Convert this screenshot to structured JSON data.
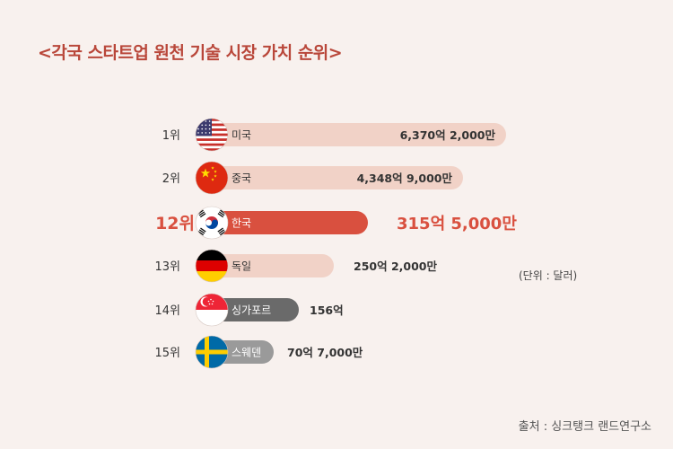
{
  "title": "<각국 스타트업 원천 기술 시장 가치 순위>",
  "unit_note": "(단위 : 달러)",
  "source": "출처 : 싱크탱크 랜드연구소",
  "colors": {
    "title": "#b9473a",
    "highlight": "#d9503f",
    "bar_light": "#f1d2c7",
    "bar_gray": "#6a6a6a",
    "bar_gray_light": "#9a9a9a",
    "background": "#f8f1ee"
  },
  "chart_data": {
    "type": "bar",
    "orientation": "horizontal",
    "title": "<각국 스타트업 원천 기술 시장 가치 순위>",
    "unit": "달러",
    "categories": [
      "미국",
      "중국",
      "한국",
      "독일",
      "싱가포르",
      "스웨덴"
    ],
    "ranks": [
      "1위",
      "2위",
      "12위",
      "13위",
      "14위",
      "15위"
    ],
    "values": [
      637020000000,
      434890000000,
      31550000000,
      25020000000,
      15600000000,
      7070000000
    ],
    "value_labels": [
      "6,370억 2,000만",
      "4,348억 9,000만",
      "315억 5,000만",
      "250억 2,000만",
      "156억",
      "70억 7,000만"
    ],
    "highlight": "한국",
    "flags": [
      "usa-flag-icon",
      "china-flag-icon",
      "korea-flag-icon",
      "germany-flag-icon",
      "singapore-flag-icon",
      "sweden-flag-icon"
    ]
  }
}
